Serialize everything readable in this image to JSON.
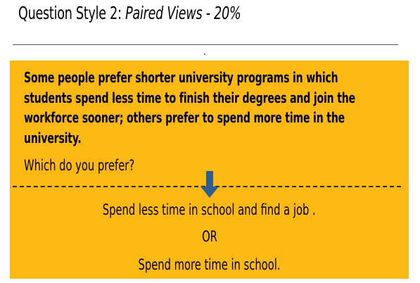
{
  "title": {
    "prefix": "Question Style 2: ",
    "emphasis": "Paired Views - 20%"
  },
  "question": {
    "prompt": "Some people prefer shorter university programs in which students spend less time to finish their degrees and join the workforce sooner; others prefer to spend more time in the university.",
    "which": "Which do you prefer?"
  },
  "options": {
    "a": "Spend less time in school and find a job .",
    "separator": "OR",
    "b": "Spend more time in school."
  },
  "colors": {
    "box_background": "#fcb813",
    "arrow": "#2e5d8f"
  },
  "icons": {
    "arrow": "arrow-down-icon"
  }
}
